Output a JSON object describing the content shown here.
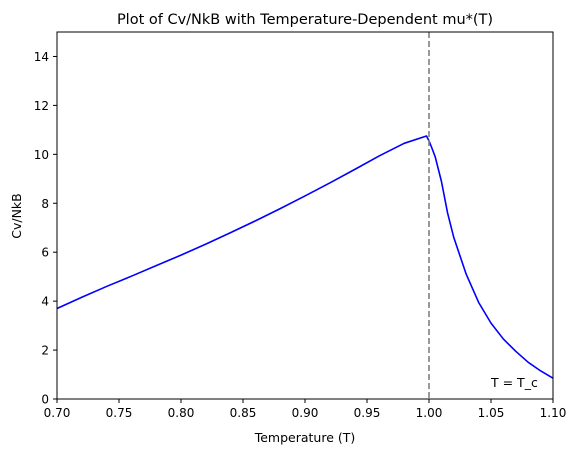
{
  "chart_data": {
    "type": "line",
    "title": "Plot of Cv/NkB with Temperature-Dependent mu*(T)",
    "xlabel": "Temperature (T)",
    "ylabel": "Cv/NkB",
    "xlim": [
      0.7,
      1.1
    ],
    "ylim": [
      0,
      15
    ],
    "xticks": [
      0.7,
      0.75,
      0.8,
      0.85,
      0.9,
      0.95,
      1.0,
      1.05,
      1.1
    ],
    "xtick_labels": [
      "0.70",
      "0.75",
      "0.80",
      "0.85",
      "0.90",
      "0.95",
      "1.00",
      "1.05",
      "1.10"
    ],
    "yticks": [
      0,
      2,
      4,
      6,
      8,
      10,
      12,
      14
    ],
    "ytick_labels": [
      "0",
      "2",
      "4",
      "6",
      "8",
      "10",
      "12",
      "14"
    ],
    "grid": false,
    "series": [
      {
        "color": "#0000ff",
        "x": [
          0.7,
          0.72,
          0.74,
          0.76,
          0.78,
          0.8,
          0.82,
          0.84,
          0.86,
          0.88,
          0.9,
          0.92,
          0.94,
          0.96,
          0.98,
          0.998,
          1.0,
          1.002,
          1.005,
          1.01,
          1.015,
          1.02,
          1.03,
          1.04,
          1.05,
          1.06,
          1.07,
          1.08,
          1.09,
          1.1
        ],
        "y": [
          3.7,
          4.16,
          4.6,
          5.02,
          5.45,
          5.88,
          6.33,
          6.8,
          7.28,
          7.78,
          8.3,
          8.83,
          9.38,
          9.94,
          10.45,
          10.75,
          10.55,
          10.3,
          9.9,
          8.9,
          7.6,
          6.6,
          5.1,
          3.95,
          3.1,
          2.45,
          1.95,
          1.5,
          1.15,
          0.85
        ]
      }
    ],
    "vline": {
      "x": 1.0,
      "color": "#808080",
      "style": "dashed"
    },
    "annotation": {
      "text": "T = T_c",
      "x": 1.05,
      "y": 0.5
    }
  }
}
